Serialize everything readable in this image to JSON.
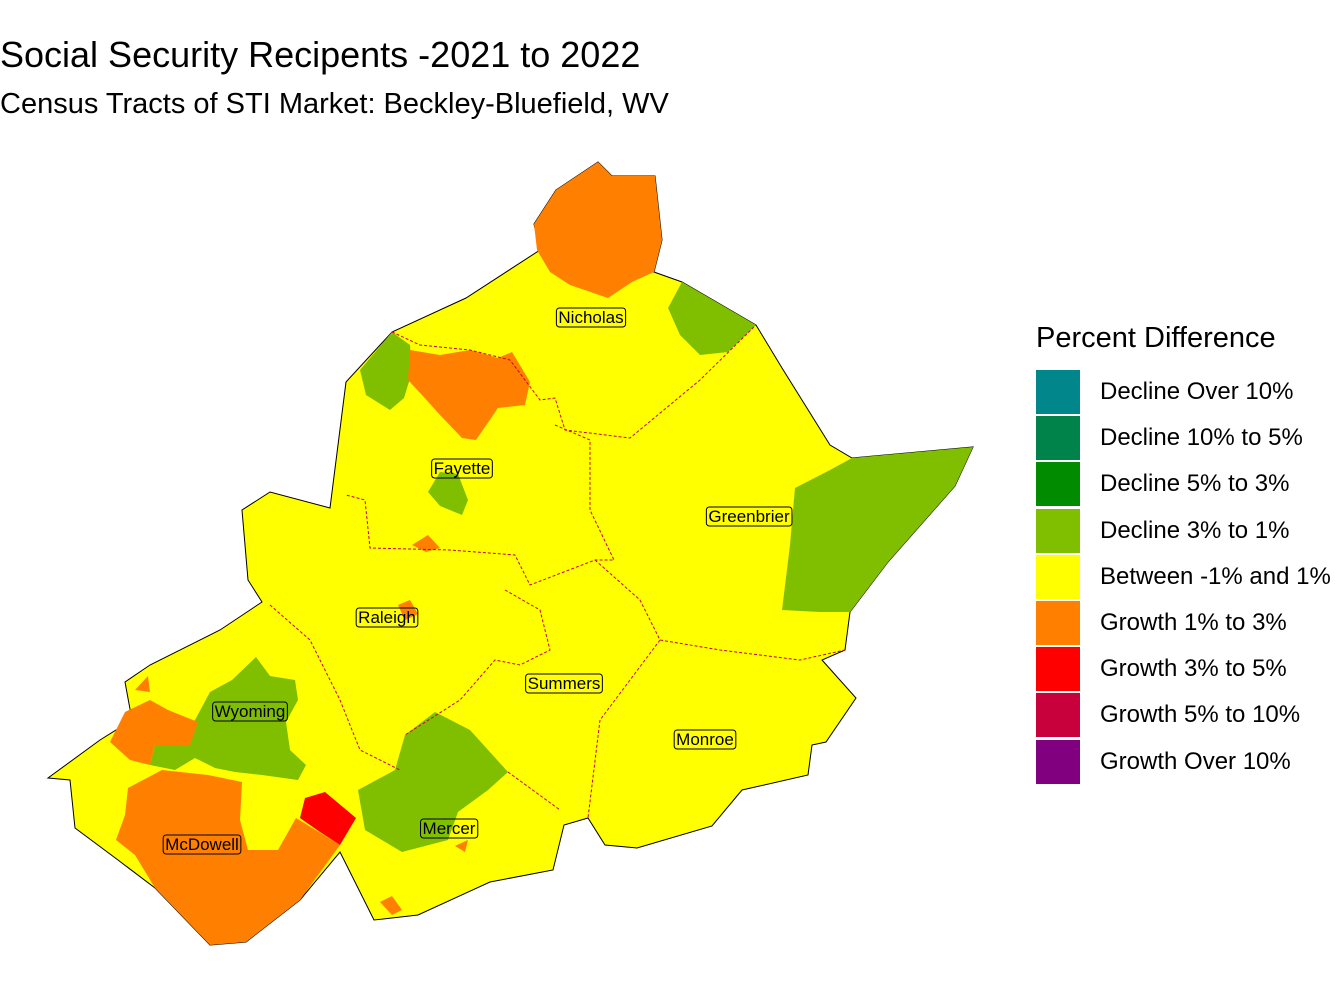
{
  "title": "Social Security Recipents -2021 to 2022",
  "subtitle": "Census Tracts of STI Market: Beckley-Bluefield, WV",
  "legend": {
    "title": "Percent Difference",
    "items": [
      {
        "label": "Decline Over 10%",
        "color": "#00868B"
      },
      {
        "label": "Decline 10% to 5%",
        "color": "#00834A"
      },
      {
        "label": "Decline 5% to 3%",
        "color": "#008B00"
      },
      {
        "label": "Decline 3% to 1%",
        "color": "#7FBF00"
      },
      {
        "label": "Between -1% and 1%",
        "color": "#FFFF00"
      },
      {
        "label": "Growth 1% to 3%",
        "color": "#FF8000"
      },
      {
        "label": "Growth 3% to 5%",
        "color": "#FF0000"
      },
      {
        "label": "Growth 5% to 10%",
        "color": "#C8003C"
      },
      {
        "label": "Growth Over 10%",
        "color": "#800080"
      }
    ]
  },
  "counties": [
    {
      "name": "Nicholas"
    },
    {
      "name": "Fayette"
    },
    {
      "name": "Greenbrier"
    },
    {
      "name": "Raleigh"
    },
    {
      "name": "Summers"
    },
    {
      "name": "Wyoming"
    },
    {
      "name": "Monroe"
    },
    {
      "name": "Mercer"
    },
    {
      "name": "McDowell"
    }
  ]
}
